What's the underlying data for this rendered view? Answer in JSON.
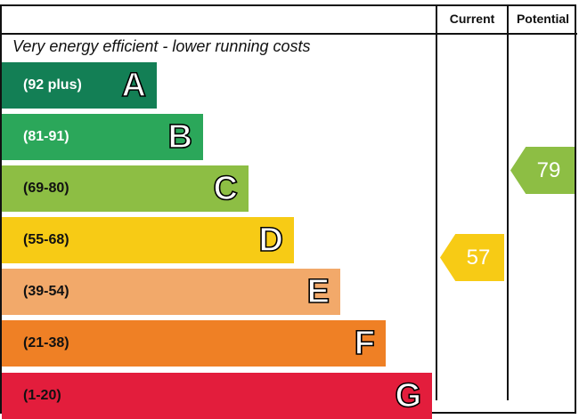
{
  "header": {
    "current_label": "Current",
    "potential_label": "Potential"
  },
  "top_text": "Very energy efficient - lower running costs",
  "chart_data": {
    "type": "bar",
    "categories": [
      "A",
      "B",
      "C",
      "D",
      "E",
      "F",
      "G"
    ],
    "ranges": [
      "(92 plus)",
      "(81-91)",
      "(69-80)",
      "(55-68)",
      "(39-54)",
      "(21-38)",
      "(1-20)"
    ],
    "colors": [
      "#137f55",
      "#2ba75a",
      "#8dbe44",
      "#f7cb15",
      "#f2a96a",
      "#ef8025",
      "#e31d3c"
    ],
    "range_text_colors": [
      "#ffffff",
      "#ffffff",
      "#111111",
      "#111111",
      "#111111",
      "#111111",
      "#111111"
    ],
    "current": {
      "value": 57,
      "band": "D",
      "color": "#f7cb15"
    },
    "potential": {
      "value": 79,
      "band": "C",
      "color": "#8dbe44"
    }
  }
}
